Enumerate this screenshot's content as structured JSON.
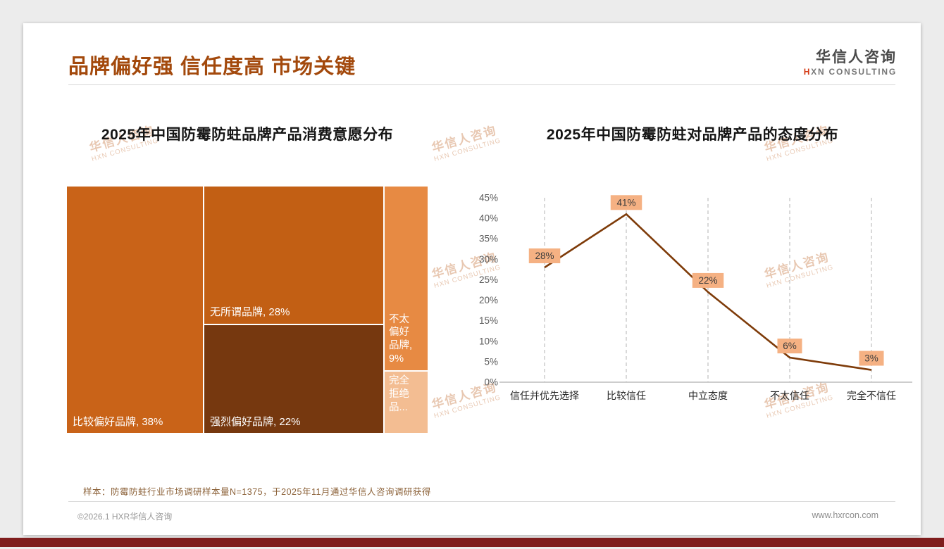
{
  "page": {
    "title": "品牌偏好强 信任度高 市场关键",
    "logo": {
      "cn": "华信人咨询",
      "en": "HXN CONSULTING"
    },
    "watermark": {
      "cn": "华信人咨询",
      "en": "HXN CONSULTING"
    },
    "note": "样本：防霉防蛀行业市场调研样本量N=1375，于2025年11月通过华信人咨询调研获得",
    "footer": {
      "left": "©2026.1 HXR华信人咨询",
      "right": "www.hxrcon.com"
    }
  },
  "colors": {
    "title": "#A3490C",
    "bottom_bar": "#7F1D1D",
    "line": "#7E3B09",
    "label_box": "#F5B183"
  },
  "chart_data": [
    {
      "type": "treemap",
      "title": "2025年中国防霉防蛀品牌产品消费意愿分布",
      "items": [
        {
          "label": "比较偏好品牌",
          "value": 38,
          "display": "比较偏好品牌, 38%",
          "color": "#C96318"
        },
        {
          "label": "无所谓品牌",
          "value": 28,
          "display": "无所谓品牌, 28%",
          "color": "#C25F14"
        },
        {
          "label": "强烈偏好品牌",
          "value": 22,
          "display": "强烈偏好品牌, 22%",
          "color": "#76380F"
        },
        {
          "label": "不太偏好品牌",
          "value": 9,
          "display": "不太偏好品牌, 9%",
          "color": "#E78A43"
        },
        {
          "label": "完全拒绝品牌",
          "value": 3,
          "display": "完全拒绝品...",
          "color": "#F3BD92"
        }
      ]
    },
    {
      "type": "line",
      "title": "2025年中国防霉防蛀对品牌产品的态度分布",
      "categories": [
        "信任并优先选择",
        "比较信任",
        "中立态度",
        "不太信任",
        "完全不信任"
      ],
      "values": [
        28,
        41,
        22,
        6,
        3
      ],
      "labels": [
        "28%",
        "41%",
        "22%",
        "6%",
        "3%"
      ],
      "ylim": [
        0,
        45
      ],
      "ytick_step": 5,
      "grid": "vertical-dashed",
      "legend": "none"
    }
  ]
}
